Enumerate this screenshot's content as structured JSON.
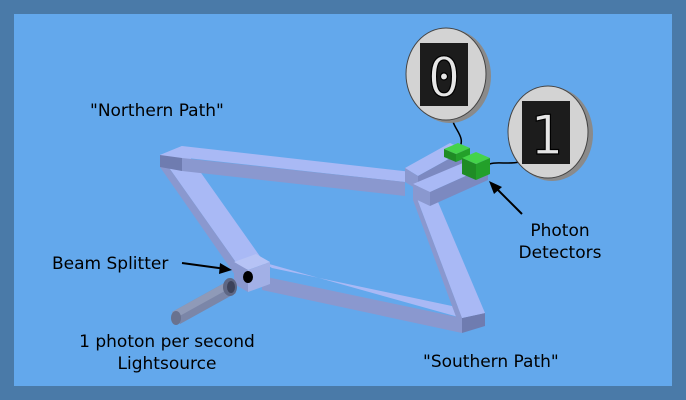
{
  "diagram": {
    "labels": {
      "northern_path": "\"Northern Path\"",
      "southern_path": "\"Southern Path\"",
      "beam_splitter": "Beam Splitter",
      "photon_detectors_line1": "Photon",
      "photon_detectors_line2": "Detectors",
      "lightsource_line1": "1 photon per second",
      "lightsource_line2": "Lightsource"
    },
    "detectors": [
      {
        "name": "detector-top",
        "reading": "0"
      },
      {
        "name": "detector-bottom",
        "reading": "1"
      }
    ],
    "colors": {
      "frame": "#4a7aa8",
      "background": "#63a8ec",
      "tube_top": "#a9b9f5",
      "tube_side": "#8a98cf",
      "tube_end": "#6f7cb0",
      "detector_green": "#23a02a",
      "disc_face": "#cfcfcf",
      "display_bg": "#1c1c1c"
    }
  }
}
